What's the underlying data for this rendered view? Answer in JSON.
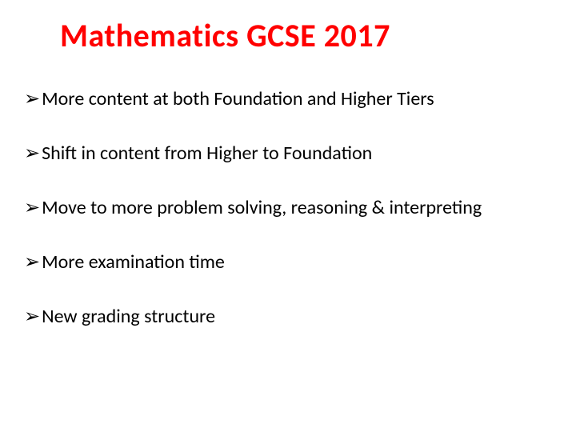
{
  "title": "Mathematics GCSE 2017",
  "title_color": "#ff0000",
  "title_fontsize": 40,
  "bullet_glyph": "➢",
  "bullet_color": "#000000",
  "bullet_fontsize": 24,
  "background_color": "#ffffff",
  "bullets": [
    "More content at both Foundation and Higher Tiers",
    "Shift in content from Higher to Foundation",
    "Move to more problem solving, reasoning & interpreting",
    "More examination time",
    "New grading structure"
  ]
}
